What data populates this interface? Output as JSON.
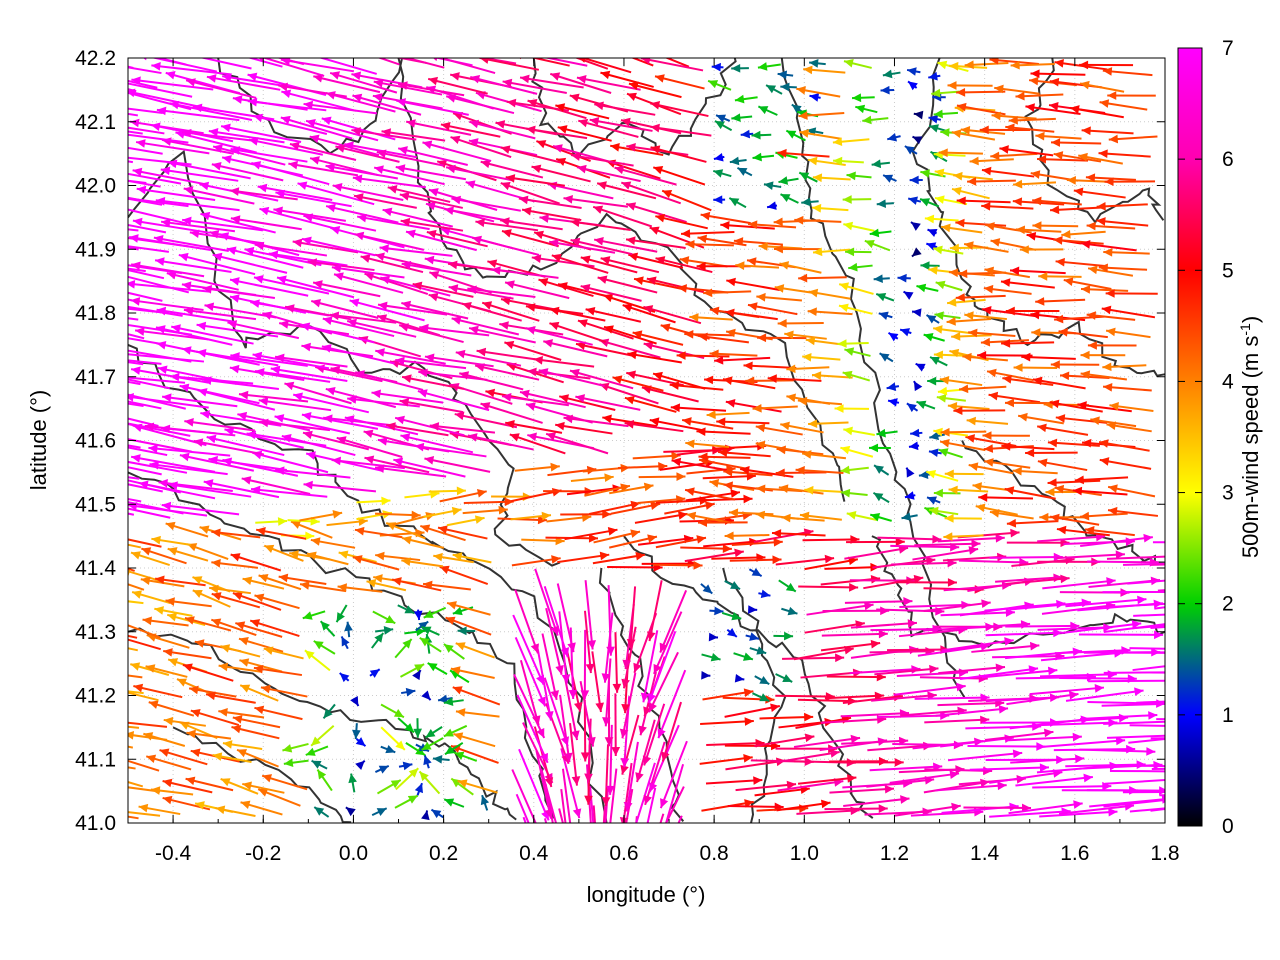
{
  "chart_data": {
    "type": "vector-field",
    "xlabel": "longitude (°)",
    "ylabel": "latitude (°)",
    "colorbar_label": "500m-wind speed (m s",
    "colorbar_label_sup": "-1",
    "colorbar_label_close": ")",
    "xlim": [
      -0.5,
      1.8
    ],
    "ylim": [
      41.0,
      42.2
    ],
    "x_ticks": [
      "-0.4",
      "-0.2",
      "0.0",
      "0.2",
      "0.4",
      "0.6",
      "0.8",
      "1.0",
      "1.2",
      "1.4",
      "1.6",
      "1.8"
    ],
    "x_tick_values": [
      -0.4,
      -0.2,
      0.0,
      0.2,
      0.4,
      0.6,
      0.8,
      1.0,
      1.2,
      1.4,
      1.6,
      1.8
    ],
    "y_ticks": [
      "41.0",
      "41.1",
      "41.2",
      "41.3",
      "41.4",
      "41.5",
      "41.6",
      "41.7",
      "41.8",
      "41.9",
      "42.0",
      "42.1",
      "42.2"
    ],
    "y_tick_values": [
      41.0,
      41.1,
      41.2,
      41.3,
      41.4,
      41.5,
      41.6,
      41.7,
      41.8,
      41.9,
      42.0,
      42.1,
      42.2
    ],
    "colorbar_range": [
      0,
      7
    ],
    "colorbar_ticks": [
      "0",
      "1",
      "2",
      "3",
      "4",
      "5",
      "6",
      "7"
    ],
    "colorbar_tick_values": [
      0,
      1,
      2,
      3,
      4,
      5,
      6,
      7
    ],
    "colormap": [
      "#000000",
      "#0000ff",
      "#00d000",
      "#ffff00",
      "#ff8000",
      "#ff0000",
      "#ff00ff"
    ],
    "grid": true,
    "contour_color": "#333333",
    "description_of_field": {
      "high_speed_regions": "west/northwest (magenta, flow toward upper-left), southeast and east (magenta, flow toward right), south-central convergence near lon 0.5-0.7",
      "low_speed_regions": "north-central near lon 0.7-1.0 lat 42.0-42.2, around lon 0.0-0.3 lat 41.1-41.3, lon 0.7-0.9 lat 41.25-41.35"
    }
  }
}
